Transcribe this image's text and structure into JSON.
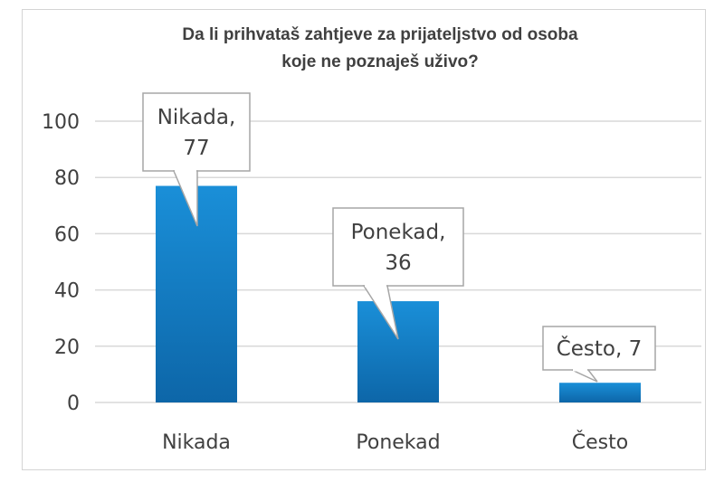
{
  "chart_data": {
    "type": "bar",
    "title_lines": [
      "Da li prihvataš zahtjeve za prijateljstvo od osoba",
      "koje ne poznaješ uživo?"
    ],
    "categories": [
      "Nikada",
      "Ponekad",
      "Često"
    ],
    "values": [
      77,
      36,
      7
    ],
    "data_labels": [
      [
        "Nikada,",
        "77"
      ],
      [
        "Ponekad,",
        "36"
      ],
      [
        "Često, 7"
      ]
    ],
    "ylim": [
      0,
      100
    ],
    "yticks": [
      "0",
      "20",
      "40",
      "60",
      "80",
      "100"
    ],
    "ytick_values": [
      0,
      20,
      40,
      60,
      80,
      100
    ],
    "grid": true,
    "legend": "none",
    "colors": {
      "bar_top": "#1a8fd8",
      "bar_bottom": "#0e6bb0",
      "grid": "#d9d9d9",
      "text": "#404040",
      "callout_border": "#a6a6a6"
    }
  }
}
